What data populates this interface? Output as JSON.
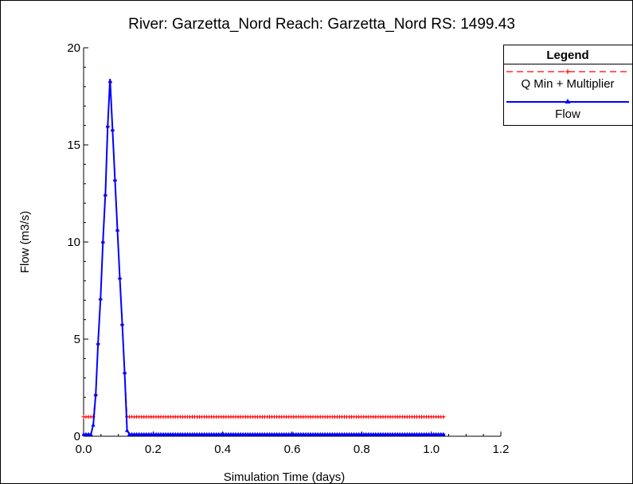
{
  "chart_data": {
    "type": "line",
    "title": "River: Garzetta_Nord  Reach: Garzetta_Nord  RS: 1499.43",
    "xlabel": "Simulation Time (days)",
    "ylabel": "Flow  (m3/s)",
    "xlim": [
      0.0,
      1.2
    ],
    "ylim": [
      0,
      20
    ],
    "x_ticks": [
      "0.0",
      "0.2",
      "0.4",
      "0.6",
      "0.8",
      "1.0",
      "1.2"
    ],
    "y_ticks": [
      "0",
      "5",
      "10",
      "15",
      "20"
    ],
    "grid": false,
    "legend": {
      "title": "Legend",
      "placement": "top-right outside"
    },
    "series": [
      {
        "name": "Q Min + Multiplier",
        "color": "#ff0000",
        "line_style": "dashed",
        "marker": "plus",
        "x": [
          0.0,
          0.015,
          0.021,
          0.028,
          0.035,
          0.042,
          0.049,
          0.056,
          0.063,
          0.069,
          0.076,
          0.083,
          0.09,
          0.097,
          0.104,
          0.111,
          0.118,
          0.125,
          0.132,
          1.04
        ],
        "y": [
          1.0,
          1.0,
          1.0,
          1.0,
          2.2,
          4.9,
          7.2,
          10.2,
          12.6,
          15.8,
          18.4,
          15.9,
          13.3,
          10.7,
          8.2,
          5.8,
          3.3,
          1.0,
          1.0,
          1.0
        ]
      },
      {
        "name": "Flow",
        "color": "#0000ff",
        "line_style": "solid",
        "marker": "triangle",
        "x": [
          0.0,
          0.015,
          0.021,
          0.028,
          0.035,
          0.042,
          0.049,
          0.056,
          0.063,
          0.069,
          0.076,
          0.083,
          0.09,
          0.097,
          0.104,
          0.111,
          0.118,
          0.125,
          0.132,
          1.04
        ],
        "y": [
          0.1,
          0.1,
          0.1,
          0.6,
          2.2,
          4.9,
          7.2,
          10.2,
          12.6,
          15.8,
          18.4,
          15.9,
          13.3,
          10.7,
          8.2,
          5.8,
          3.3,
          0.3,
          0.1,
          0.1
        ]
      }
    ]
  }
}
